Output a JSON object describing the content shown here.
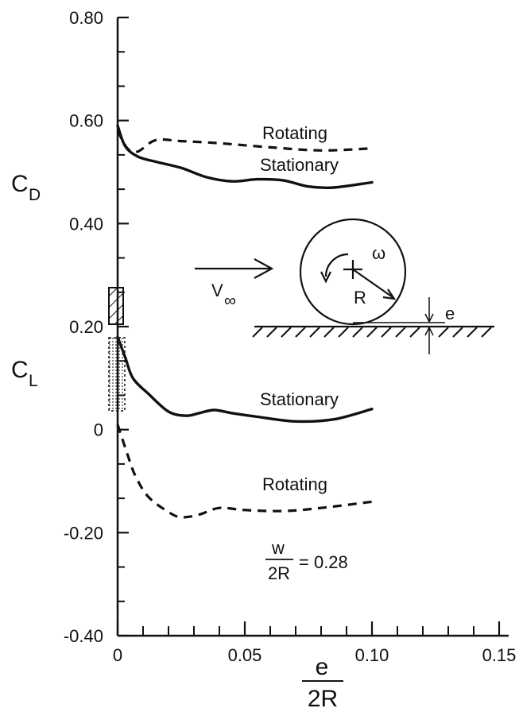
{
  "chart_data": {
    "type": "line",
    "xlabel_numerator": "e",
    "xlabel_denominator": "2R",
    "ylabel_drag": {
      "symbol": "C",
      "subscript": "D"
    },
    "ylabel_lift": {
      "symbol": "C",
      "subscript": "L"
    },
    "xlim": [
      0,
      0.15
    ],
    "ylim": [
      -0.4,
      0.8
    ],
    "x_ticks": [
      {
        "value": 0,
        "label": "0"
      },
      {
        "value": 0.05,
        "label": "0.05"
      },
      {
        "value": 0.1,
        "label": "0.10"
      },
      {
        "value": 0.15,
        "label": "0.15"
      }
    ],
    "y_ticks": [
      {
        "value": 0.8,
        "label": "0.80"
      },
      {
        "value": 0.6,
        "label": "0.60"
      },
      {
        "value": 0.4,
        "label": "0.40"
      },
      {
        "value": 0.2,
        "label": "0.20"
      },
      {
        "value": 0,
        "label": "0"
      },
      {
        "value": -0.2,
        "label": "-0.20"
      },
      {
        "value": -0.4,
        "label": "-0.40"
      }
    ],
    "series": [
      {
        "name": "Rotating",
        "group": "CD",
        "style": "dashed",
        "x": [
          0.0,
          0.004,
          0.008,
          0.015,
          0.025,
          0.04,
          0.06,
          0.08,
          0.1
        ],
        "y": [
          0.58,
          0.545,
          0.54,
          0.562,
          0.56,
          0.556,
          0.548,
          0.542,
          0.546
        ]
      },
      {
        "name": "Stationary",
        "group": "CD",
        "style": "solid",
        "x": [
          0.0,
          0.003,
          0.008,
          0.015,
          0.025,
          0.035,
          0.045,
          0.055,
          0.065,
          0.075,
          0.085,
          0.1
        ],
        "y": [
          0.59,
          0.55,
          0.53,
          0.52,
          0.508,
          0.49,
          0.482,
          0.486,
          0.484,
          0.472,
          0.47,
          0.48
        ]
      },
      {
        "name": "Stationary",
        "group": "CL",
        "style": "solid",
        "x": [
          0.0,
          0.003,
          0.006,
          0.012,
          0.02,
          0.027,
          0.032,
          0.038,
          0.045,
          0.055,
          0.07,
          0.085,
          0.1
        ],
        "y": [
          0.18,
          0.14,
          0.1,
          0.07,
          0.035,
          0.027,
          0.032,
          0.038,
          0.032,
          0.025,
          0.016,
          0.02,
          0.04
        ]
      },
      {
        "name": "Rotating",
        "group": "CL",
        "style": "dashed",
        "x": [
          0.0,
          0.004,
          0.007,
          0.012,
          0.02,
          0.025,
          0.032,
          0.04,
          0.05,
          0.065,
          0.08,
          0.1
        ],
        "y": [
          0.01,
          -0.05,
          -0.09,
          -0.13,
          -0.16,
          -0.17,
          -0.165,
          -0.152,
          -0.156,
          -0.158,
          -0.152,
          -0.14
        ]
      }
    ],
    "annotations": {
      "rotating_cd": "Rotating",
      "stationary_cd": "Stationary",
      "stationary_cl": "Stationary",
      "rotating_cl": "Rotating",
      "param_numerator": "w",
      "param_denominator": "2R",
      "param_value": "= 0.28"
    },
    "inset": {
      "velocity_symbol": "V",
      "velocity_subscript": "∞",
      "omega": "ω",
      "radius": "R",
      "gap": "e"
    }
  }
}
